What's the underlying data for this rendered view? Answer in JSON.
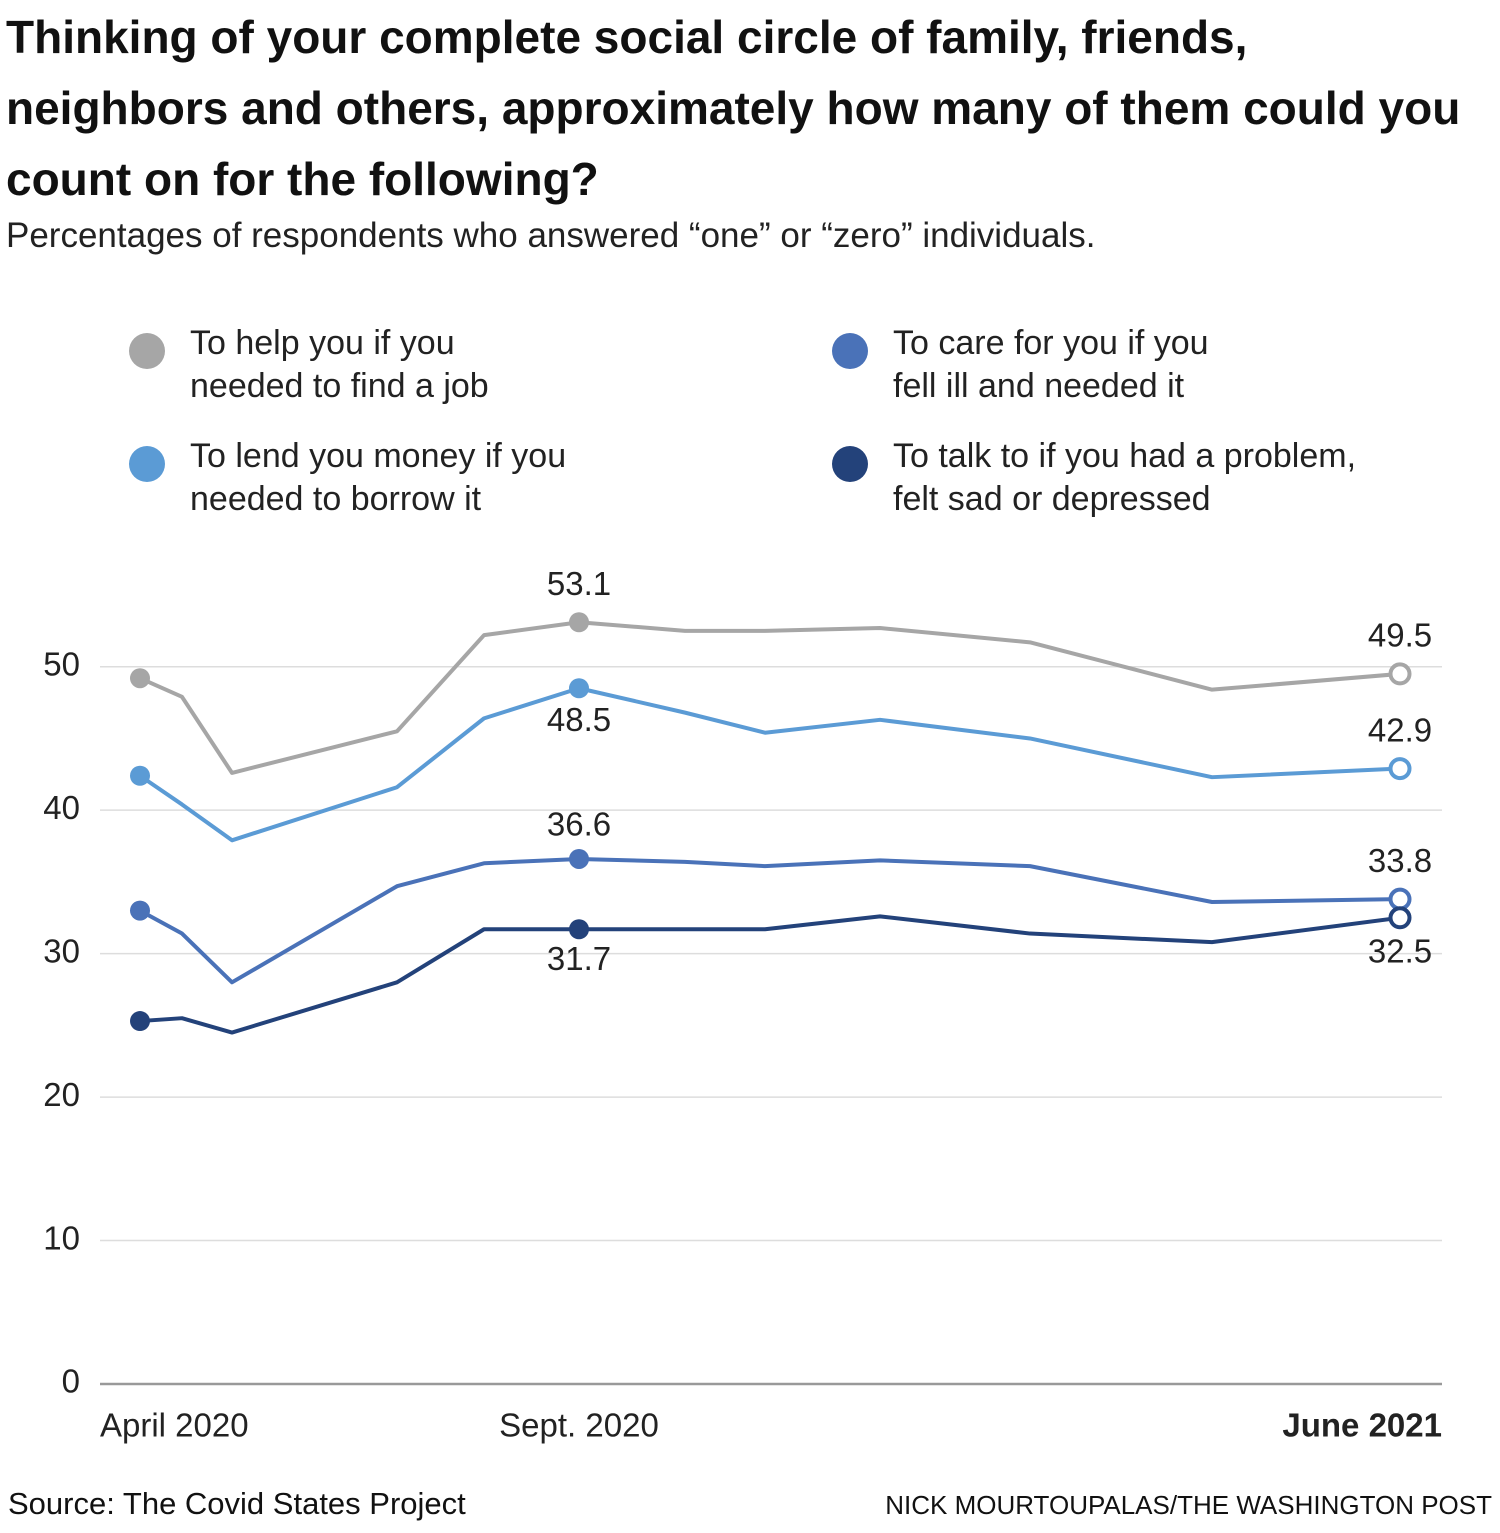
{
  "chart_data": {
    "type": "line",
    "title": "Thinking of your complete social circle of family, friends, neighbors and others, approximately how many of them could you count on for the following?",
    "subtitle": "Percentages of respondents who answered “one” or “zero” individuals.",
    "categories": [
      "April 2020",
      null,
      null,
      null,
      null,
      "Sept. 2020",
      null,
      null,
      null,
      null,
      null,
      "June 2021"
    ],
    "series": [
      {
        "name": "To help you if you\nneeded to find a job",
        "color": "#a6a6a6",
        "values": [
          49.2,
          47.9,
          42.6,
          45.5,
          52.2,
          53.1,
          52.5,
          52.5,
          52.7,
          51.7,
          48.4,
          49.5
        ]
      },
      {
        "name": "To lend you money if you\nneeded to borrow it",
        "color": "#5b9bd5",
        "values": [
          42.4,
          40.4,
          37.9,
          41.6,
          46.4,
          48.5,
          46.8,
          45.4,
          46.3,
          45.0,
          42.3,
          42.9
        ]
      },
      {
        "name": "To care for you if you\nfell ill and needed it",
        "color": "#4a72b8",
        "values": [
          33.0,
          31.4,
          28.0,
          34.7,
          36.3,
          36.6,
          36.4,
          36.1,
          36.5,
          36.1,
          33.6,
          33.8
        ]
      },
      {
        "name": "To talk to if you had a problem,\nfelt sad or depressed",
        "color": "#23427a",
        "values": [
          25.3,
          25.5,
          24.5,
          28.0,
          31.7,
          31.7,
          31.7,
          31.7,
          32.6,
          31.4,
          30.8,
          32.5
        ]
      }
    ],
    "ylim": [
      0,
      55
    ],
    "yticks": [
      0,
      10,
      20,
      30,
      40,
      50
    ],
    "grid": true,
    "source": "Source: The Covid States Project",
    "credit": "NICK MOURTOUPALAS/THE WASHINGTON POST"
  }
}
